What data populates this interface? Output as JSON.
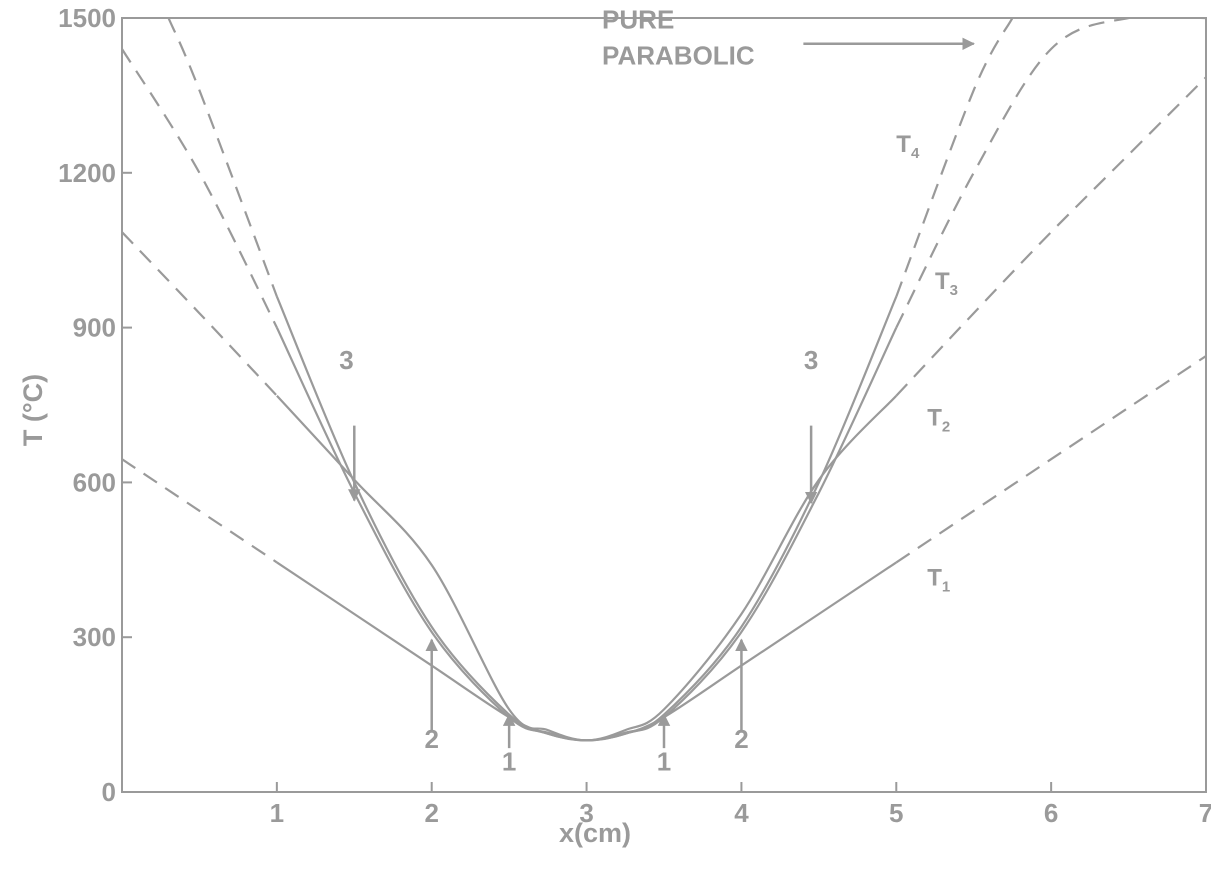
{
  "chart_data": {
    "type": "line",
    "title": "",
    "xlabel": "x(cm)",
    "ylabel": "T (°C)",
    "xlim": [
      0,
      7
    ],
    "ylim": [
      0,
      1500
    ],
    "xticks": [
      "1",
      "2",
      "3",
      "4",
      "5",
      "6",
      "7"
    ],
    "yticks": [
      "0",
      "300",
      "600",
      "900",
      "1200",
      "1500"
    ],
    "grid": false,
    "curve_labels": [
      {
        "label": "T",
        "sub": "1",
        "x": 5.2,
        "y": 400
      },
      {
        "label": "T",
        "sub": "2",
        "x": 5.2,
        "y": 710
      },
      {
        "label": "T",
        "sub": "3",
        "x": 5.25,
        "y": 975
      },
      {
        "label": "T",
        "sub": "4",
        "x": 5.0,
        "y": 1240
      }
    ],
    "series": [
      {
        "name": "T1",
        "x": [
          0,
          0.5,
          1.0,
          1.5,
          2.0,
          2.5,
          2.75,
          3.0,
          3.25,
          3.5,
          4.0,
          4.5,
          5.0,
          5.5,
          6.0,
          6.5,
          7.0
        ],
        "y": [
          645,
          545,
          445,
          345,
          245,
          145,
          113,
          100,
          113,
          145,
          245,
          345,
          445,
          545,
          645,
          745,
          845
        ],
        "dashed_from_x": 5.3
      },
      {
        "name": "T2",
        "x": [
          0,
          0.5,
          1.0,
          1.5,
          2.0,
          2.5,
          2.75,
          3.0,
          3.25,
          3.5,
          4.0,
          4.5,
          5.0,
          5.5,
          6.0,
          6.5,
          7.0
        ],
        "y": [
          1085,
          928,
          768,
          605,
          440,
          160,
          120,
          100,
          120,
          160,
          345,
          605,
          768,
          928,
          1085,
          1235,
          1385
        ],
        "dashed_from_x": 5.3
      },
      {
        "name": "T3",
        "x": [
          0,
          0.5,
          1.0,
          1.5,
          2.0,
          2.5,
          2.75,
          3.0,
          3.25,
          3.5,
          4.0,
          4.5,
          5.0,
          5.5,
          6.0,
          6.5,
          7.0
        ],
        "y": [
          1440,
          1200,
          900,
          580,
          310,
          145,
          115,
          100,
          115,
          145,
          310,
          580,
          900,
          1200,
          1440,
          1500,
          1500
        ],
        "dashed_from_x": 5.2
      },
      {
        "name": "PURE PARABOLIC",
        "x": [
          0.3,
          0.5,
          1.0,
          1.5,
          2.0,
          2.5,
          2.75,
          3.0,
          3.25,
          3.5,
          4.0,
          4.5,
          5.0,
          5.5,
          5.75
        ],
        "y": [
          1500,
          1360,
          960,
          600,
          320,
          150,
          113,
          100,
          113,
          150,
          320,
          600,
          960,
          1360,
          1500
        ],
        "dashed_from_x": 5.05
      }
    ],
    "annotations": [
      {
        "text": "PURE",
        "x": 3.1,
        "y": 1480
      },
      {
        "text": "PARABOLIC",
        "x": 3.1,
        "y": 1410
      },
      {
        "text": "3",
        "x": 1.45,
        "y": 820
      },
      {
        "text": "3",
        "x": 4.45,
        "y": 820
      },
      {
        "text": "2",
        "x": 2.0,
        "y": 85
      },
      {
        "text": "2",
        "x": 4.0,
        "y": 85
      },
      {
        "text": "1",
        "x": 2.5,
        "y": 42
      },
      {
        "text": "1",
        "x": 3.5,
        "y": 42
      }
    ],
    "arrows": [
      {
        "from": [
          4.45,
          710
        ],
        "to": [
          4.45,
          560
        ]
      },
      {
        "from": [
          1.5,
          710
        ],
        "to": [
          1.5,
          565
        ]
      },
      {
        "from": [
          2.0,
          115
        ],
        "to": [
          2.0,
          295
        ]
      },
      {
        "from": [
          4.0,
          115
        ],
        "to": [
          4.0,
          295
        ]
      },
      {
        "from": [
          2.5,
          85
        ],
        "to": [
          2.5,
          150
        ]
      },
      {
        "from": [
          3.5,
          85
        ],
        "to": [
          3.5,
          150
        ]
      },
      {
        "from": [
          4.4,
          1450
        ],
        "to": [
          5.5,
          1450
        ]
      }
    ]
  },
  "colors": {
    "line": "#9a9a9a",
    "text": "#9a9a9a",
    "background": "#ffffff"
  }
}
